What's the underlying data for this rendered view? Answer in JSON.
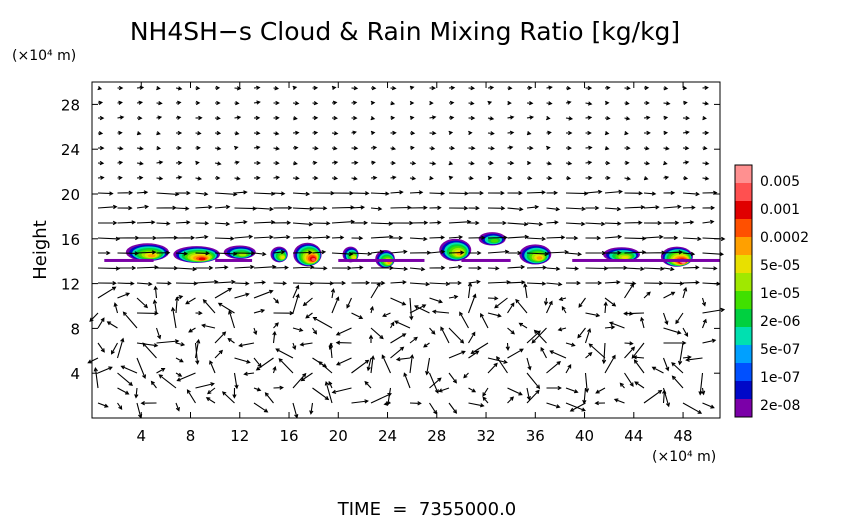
{
  "chart_data": {
    "type": "heatmap",
    "title": "NH4SH−s Cloud & Rain Mixing Ratio [kg/kg]",
    "ylabel": "Height",
    "x_unit": "(×10⁴ m)",
    "y_unit": "(×10⁴ m)",
    "footer": "TIME  =  7355000.0",
    "xlim": [
      0,
      51
    ],
    "ylim": [
      0,
      30
    ],
    "x_ticks": [
      4,
      8,
      12,
      16,
      20,
      24,
      28,
      32,
      36,
      40,
      44,
      48
    ],
    "x_tick_labels": [
      "4",
      "8",
      "12",
      "16",
      "20",
      "24",
      "28",
      "32",
      "36",
      "40",
      "44",
      "48"
    ],
    "y_ticks": [
      4,
      8,
      12,
      16,
      20,
      24,
      28
    ],
    "y_tick_labels": [
      "4",
      "8",
      "12",
      "16",
      "20",
      "24",
      "28"
    ],
    "colorbar": {
      "colors": [
        "#7b00a8",
        "#0008c8",
        "#0050ff",
        "#00a0ff",
        "#00e0b0",
        "#00d040",
        "#40e000",
        "#a0e800",
        "#e8e000",
        "#ffa000",
        "#ff5000",
        "#e00000",
        "#ff5050",
        "#ff9090"
      ],
      "labels": [
        "2e-08",
        "1e-07",
        "5e-07",
        "2e-06",
        "1e-05",
        "5e-05",
        "0.0002",
        "0.001",
        "0.005"
      ]
    },
    "cloud_cells": [
      {
        "x": 4.5,
        "y": 14.8,
        "w": 3.5,
        "h": 1.6,
        "level": 0.55
      },
      {
        "x": 8.5,
        "y": 14.6,
        "w": 3.8,
        "h": 1.5,
        "level": 0.8
      },
      {
        "x": 12.0,
        "y": 14.8,
        "w": 2.6,
        "h": 1.2,
        "level": 0.35
      },
      {
        "x": 15.2,
        "y": 14.6,
        "w": 1.4,
        "h": 1.4,
        "level": 0.45
      },
      {
        "x": 17.5,
        "y": 14.6,
        "w": 2.3,
        "h": 2.1,
        "level": 0.9
      },
      {
        "x": 21.0,
        "y": 14.6,
        "w": 1.3,
        "h": 1.4,
        "level": 0.4
      },
      {
        "x": 23.8,
        "y": 14.2,
        "w": 1.6,
        "h": 1.6,
        "level": 0.55
      },
      {
        "x": 29.5,
        "y": 15.0,
        "w": 2.6,
        "h": 2.0,
        "level": 0.5
      },
      {
        "x": 32.5,
        "y": 16.0,
        "w": 2.2,
        "h": 1.2,
        "level": 0.25
      },
      {
        "x": 36.0,
        "y": 14.6,
        "w": 2.6,
        "h": 1.8,
        "level": 0.6
      },
      {
        "x": 43.0,
        "y": 14.6,
        "w": 3.0,
        "h": 1.3,
        "level": 0.45
      },
      {
        "x": 47.5,
        "y": 14.4,
        "w": 2.6,
        "h": 1.8,
        "level": 0.95
      }
    ]
  }
}
